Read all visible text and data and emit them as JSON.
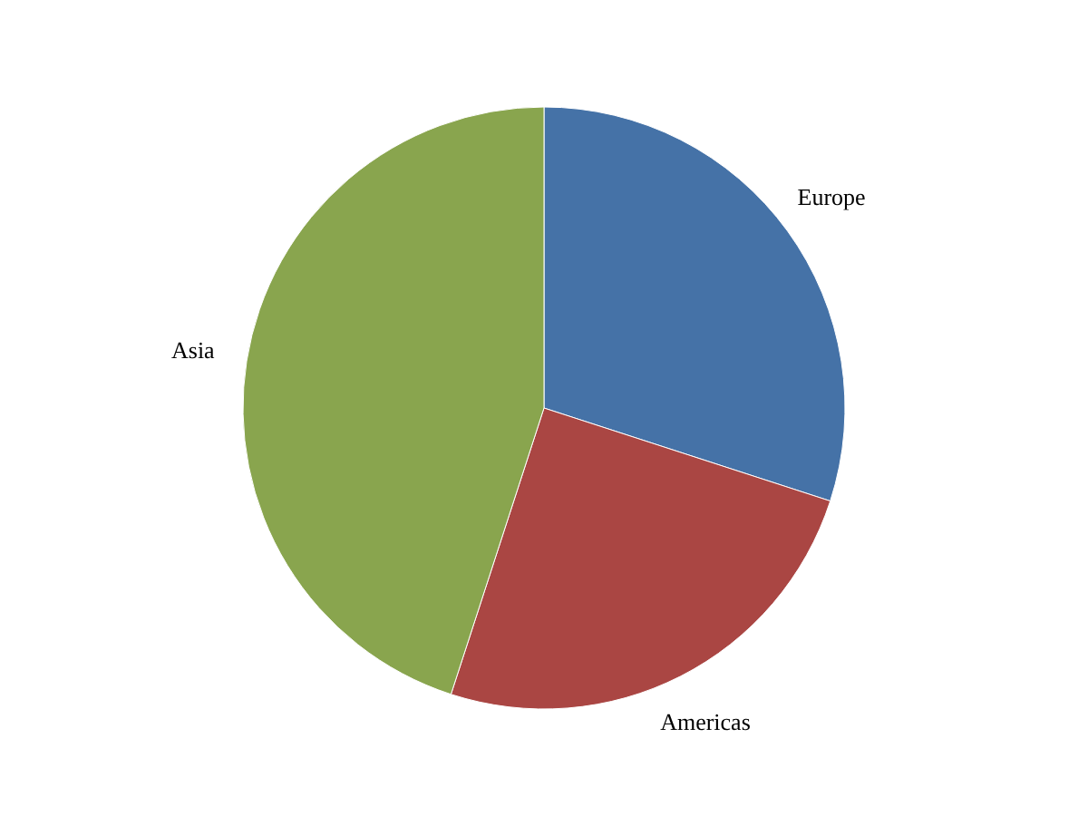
{
  "chart_data": {
    "type": "pie",
    "categories": [
      "Europe",
      "Americas",
      "Asia"
    ],
    "values": [
      30,
      25,
      45
    ],
    "colors": [
      "#4572a7",
      "#aa4643",
      "#89a54e"
    ],
    "legend": false
  }
}
